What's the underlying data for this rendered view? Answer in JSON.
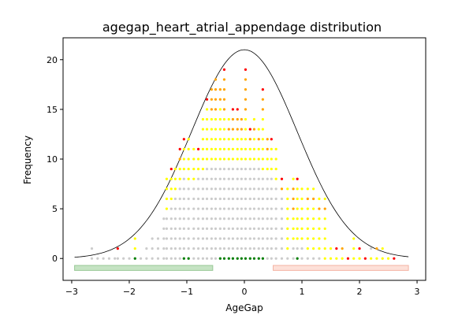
{
  "chart_data": {
    "type": "scatter",
    "title": "agegap_heart_atrial_appendage distribution",
    "xlabel": "AgeGap",
    "ylabel": "Frequency",
    "xlim": [
      -3.15,
      3.15
    ],
    "ylim": [
      -2.2,
      22.2
    ],
    "x_ticks": [
      -3,
      -2,
      -1,
      0,
      1,
      2,
      3
    ],
    "y_ticks": [
      0,
      5,
      10,
      15,
      20
    ],
    "colors": {
      "gray": "#cccccc",
      "yellow": "#ffff00",
      "orange": "#ffa500",
      "red": "#ff0000",
      "green": "#008000",
      "green_band": "#c5e3c3",
      "green_band_edge": "#98c896",
      "red_band": "#fde0d8",
      "red_band_edge": "#f4b4a4",
      "curve": "#000000"
    },
    "bands": [
      {
        "x0": -2.95,
        "x1": -0.55,
        "y0": -1.2,
        "y1": -0.7,
        "color": "green"
      },
      {
        "x0": 0.5,
        "x1": 2.85,
        "y0": -1.2,
        "y1": -0.7,
        "color": "red"
      }
    ],
    "curve": {
      "peak": 21.0,
      "mu": 0.0,
      "sigma": 0.92,
      "x_from": -2.95,
      "x_to": 2.85
    },
    "columns": [
      {
        "x": -2.65,
        "n": 1,
        "y": 0,
        "o": 0,
        "r": 0,
        "g": 0,
        "top": "gray"
      },
      {
        "x": -2.55,
        "n": 0,
        "y": 0,
        "o": 0,
        "r": 0,
        "g": 0,
        "top": "gray"
      },
      {
        "x": -2.45,
        "n": 0,
        "y": 0,
        "o": 0,
        "r": 0,
        "g": 0,
        "top": "gray"
      },
      {
        "x": -2.35,
        "n": 0,
        "y": 0,
        "o": 0,
        "r": 0,
        "g": 0,
        "top": "gray"
      },
      {
        "x": -2.25,
        "n": 0,
        "y": 0,
        "o": 0,
        "r": 0,
        "g": 0,
        "top": "gray"
      },
      {
        "x": -2.2,
        "n": 1,
        "y": 0,
        "o": 0,
        "r": 0,
        "g": 0,
        "top": "red"
      },
      {
        "x": -2.1,
        "n": 0,
        "y": 0,
        "o": 0,
        "r": 0,
        "g": 0,
        "top": "gray"
      },
      {
        "x": -2.0,
        "n": 0,
        "y": 0,
        "o": 0,
        "r": 0,
        "g": 0,
        "top": "gray"
      },
      {
        "x": -1.9,
        "n": 1,
        "y": 1,
        "o": 0,
        "r": 0,
        "g": 1,
        "top": "yellow"
      },
      {
        "x": -1.8,
        "n": 0,
        "y": 0,
        "o": 0,
        "r": 0,
        "g": 0,
        "top": "gray"
      },
      {
        "x": -1.7,
        "n": 1,
        "y": 0,
        "o": 0,
        "r": 0,
        "g": 0,
        "top": "gray"
      },
      {
        "x": -1.6,
        "n": 2,
        "y": 0,
        "o": 0,
        "r": 0,
        "g": 0,
        "top": "gray"
      },
      {
        "x": -1.5,
        "n": 2,
        "y": 0,
        "o": 0,
        "r": 0,
        "g": 0,
        "top": "gray"
      },
      {
        "x": -1.4,
        "n": 4,
        "y": 0,
        "o": 0,
        "r": 0,
        "g": 0,
        "top": "gray"
      },
      {
        "x": -1.35,
        "n": 5,
        "y": 3,
        "o": 0,
        "r": 0,
        "g": 0,
        "top": "yellow"
      },
      {
        "x": -1.27,
        "n": 6,
        "y": 3,
        "o": 0,
        "r": 0,
        "g": 0,
        "top": "red"
      },
      {
        "x": -1.2,
        "n": 7,
        "y": 2,
        "o": 0,
        "r": 0,
        "g": 0,
        "top": "yellow"
      },
      {
        "x": -1.12,
        "n": 8,
        "y": 2,
        "o": 1,
        "r": 0,
        "g": 0,
        "top": "red"
      },
      {
        "x": -1.05,
        "n": 9,
        "y": 3,
        "o": 0,
        "r": 0,
        "g": 1,
        "top": "red"
      },
      {
        "x": -0.97,
        "n": 8,
        "y": 4,
        "o": 0,
        "r": 0,
        "g": 1,
        "top": "yellow"
      },
      {
        "x": -0.88,
        "n": 8,
        "y": 3,
        "o": 0,
        "r": 0,
        "g": 0,
        "top": "yellow"
      },
      {
        "x": -0.8,
        "n": 9,
        "y": 2,
        "o": 0,
        "r": 0,
        "g": 0,
        "top": "red"
      },
      {
        "x": -0.72,
        "n": 9,
        "y": 5,
        "o": 0,
        "r": 0,
        "g": 0,
        "top": "yellow"
      },
      {
        "x": -0.65,
        "n": 10,
        "y": 6,
        "o": 0,
        "r": 0,
        "g": 0,
        "top": "red"
      },
      {
        "x": -0.57,
        "n": 10,
        "y": 5,
        "o": 2,
        "r": 0,
        "g": 0,
        "top": "orange"
      },
      {
        "x": -0.5,
        "n": 10,
        "y": 5,
        "o": 3,
        "r": 0,
        "g": 0,
        "top": "orange"
      },
      {
        "x": -0.42,
        "n": 10,
        "y": 6,
        "o": 1,
        "r": 0,
        "g": 1,
        "top": "orange"
      },
      {
        "x": -0.35,
        "n": 10,
        "y": 5,
        "o": 4,
        "r": 0,
        "g": 1,
        "top": "red"
      },
      {
        "x": -0.27,
        "n": 10,
        "y": 3,
        "o": 1,
        "r": 0,
        "g": 1,
        "top": "yellow"
      },
      {
        "x": -0.2,
        "n": 10,
        "y": 3,
        "o": 2,
        "r": 0,
        "g": 1,
        "top": "red"
      },
      {
        "x": -0.12,
        "n": 10,
        "y": 3,
        "o": 2,
        "r": 0,
        "g": 1,
        "top": "red"
      },
      {
        "x": -0.05,
        "n": 10,
        "y": 3,
        "o": 1,
        "r": 0,
        "g": 1,
        "top": "orange"
      },
      {
        "x": 0.02,
        "n": 10,
        "y": 5,
        "o": 4,
        "r": 0,
        "g": 1,
        "top": "red"
      },
      {
        "x": 0.1,
        "n": 10,
        "y": 2,
        "o": 1,
        "r": 0,
        "g": 1,
        "top": "red"
      },
      {
        "x": 0.17,
        "n": 10,
        "y": 3,
        "o": 1,
        "r": 0,
        "g": 1,
        "top": "yellow"
      },
      {
        "x": 0.25,
        "n": 10,
        "y": 2,
        "o": 1,
        "r": 0,
        "g": 1,
        "top": "yellow"
      },
      {
        "x": 0.32,
        "n": 9,
        "y": 6,
        "o": 2,
        "r": 0,
        "g": 1,
        "top": "red"
      },
      {
        "x": 0.4,
        "n": 9,
        "y": 2,
        "o": 1,
        "r": 0,
        "g": 0,
        "top": "orange"
      },
      {
        "x": 0.47,
        "n": 9,
        "y": 3,
        "o": 0,
        "r": 0,
        "g": 0,
        "top": "red"
      },
      {
        "x": 0.55,
        "n": 8,
        "y": 3,
        "o": 0,
        "r": 0,
        "g": 0,
        "top": "yellow"
      },
      {
        "x": 0.65,
        "n": 7,
        "y": 0,
        "o": 1,
        "r": 0,
        "g": 0,
        "top": "red"
      },
      {
        "x": 0.75,
        "n": 1,
        "y": 6,
        "o": 0,
        "r": 0,
        "g": 0,
        "top": "yellow"
      },
      {
        "x": 0.85,
        "n": 2,
        "y": 3,
        "o": 3,
        "r": 0,
        "g": 0,
        "top": "yellow"
      },
      {
        "x": 0.92,
        "n": 2,
        "y": 6,
        "o": 0,
        "r": 0,
        "g": 1,
        "top": "red"
      },
      {
        "x": 1.0,
        "n": 2,
        "y": 5,
        "o": 0,
        "r": 0,
        "g": 0,
        "top": "yellow"
      },
      {
        "x": 1.1,
        "n": 1,
        "y": 5,
        "o": 1,
        "r": 0,
        "g": 0,
        "top": "yellow"
      },
      {
        "x": 1.2,
        "n": 1,
        "y": 5,
        "o": 1,
        "r": 0,
        "g": 0,
        "top": "yellow"
      },
      {
        "x": 1.3,
        "n": 1,
        "y": 4,
        "o": 1,
        "r": 0,
        "g": 0,
        "top": "yellow"
      },
      {
        "x": 1.4,
        "n": 0,
        "y": 5,
        "o": 1,
        "r": 0,
        "g": 0,
        "top": "yellow"
      },
      {
        "x": 1.5,
        "n": 0,
        "y": 1,
        "o": 0,
        "r": 0,
        "g": 0,
        "top": "yellow"
      },
      {
        "x": 1.6,
        "n": 0,
        "y": 1,
        "o": 0,
        "r": 0,
        "g": 0,
        "top": "red"
      },
      {
        "x": 1.7,
        "n": 0,
        "y": 1,
        "o": 0,
        "r": 0,
        "g": 0,
        "top": "orange"
      },
      {
        "x": 1.8,
        "n": 0,
        "y": 0,
        "o": 0,
        "r": 0,
        "g": 0,
        "top": "red"
      },
      {
        "x": 1.9,
        "n": 0,
        "y": 2,
        "o": 0,
        "r": 0,
        "g": 0,
        "top": "yellow"
      },
      {
        "x": 2.0,
        "n": 0,
        "y": 1,
        "o": 0,
        "r": 0,
        "g": 0,
        "top": "red"
      },
      {
        "x": 2.1,
        "n": 0,
        "y": 0,
        "o": 0,
        "r": 0,
        "g": 0,
        "top": "red"
      },
      {
        "x": 2.2,
        "n": 0,
        "y": 1,
        "o": 0,
        "r": 0,
        "g": 0,
        "top": "gray"
      },
      {
        "x": 2.3,
        "n": 0,
        "y": 1,
        "o": 0,
        "r": 0,
        "g": 0,
        "top": "orange"
      },
      {
        "x": 2.4,
        "n": 0,
        "y": 1,
        "o": 0,
        "r": 0,
        "g": 0,
        "top": "yellow"
      },
      {
        "x": 2.5,
        "n": 0,
        "y": 0,
        "o": 0,
        "r": 0,
        "g": 0,
        "top": "yellow"
      },
      {
        "x": 2.6,
        "n": 0,
        "y": 0,
        "o": 0,
        "r": 0,
        "g": 0,
        "top": "red"
      }
    ]
  }
}
